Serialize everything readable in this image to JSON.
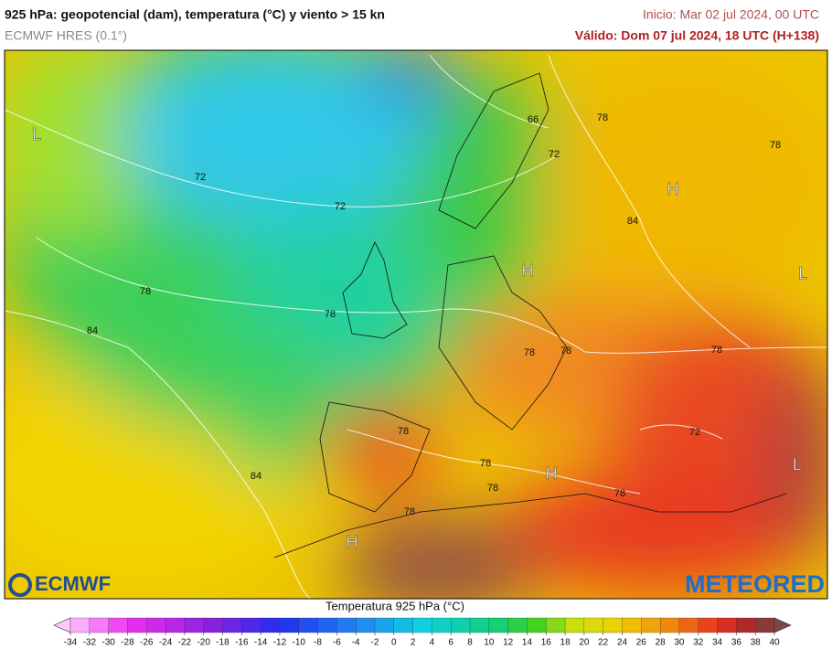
{
  "header": {
    "title": "925 hPa: geopotencial (dam), temperatura (°C) y viento > 15 kn",
    "model": "ECMWF HRES (0.1°)",
    "init": "Inicio: Mar 02 jul 2024, 00 UTC",
    "valid": "Válido: Dom 07 jul 2024, 18 UTC (H+138)"
  },
  "map": {
    "contour_labels": [
      66,
      78,
      78,
      72,
      72,
      72,
      84,
      78,
      78,
      84,
      78,
      78,
      78,
      78,
      72,
      78,
      84,
      78,
      78,
      78
    ],
    "pressure_centers": [
      "L",
      "H",
      "H",
      "L",
      "H",
      "L",
      "H"
    ]
  },
  "logos": {
    "left": "ECMWF",
    "right": "METEORED"
  },
  "colorbar": {
    "title": "Temperatura 925 hPa (°C)",
    "ticks": [
      -34,
      -32,
      -30,
      -28,
      -26,
      -24,
      -22,
      -20,
      -18,
      -16,
      -14,
      -12,
      -10,
      -8,
      -6,
      -4,
      -2,
      0,
      2,
      4,
      6,
      8,
      10,
      12,
      14,
      16,
      18,
      20,
      22,
      24,
      26,
      28,
      30,
      32,
      34,
      36,
      38,
      40
    ]
  }
}
